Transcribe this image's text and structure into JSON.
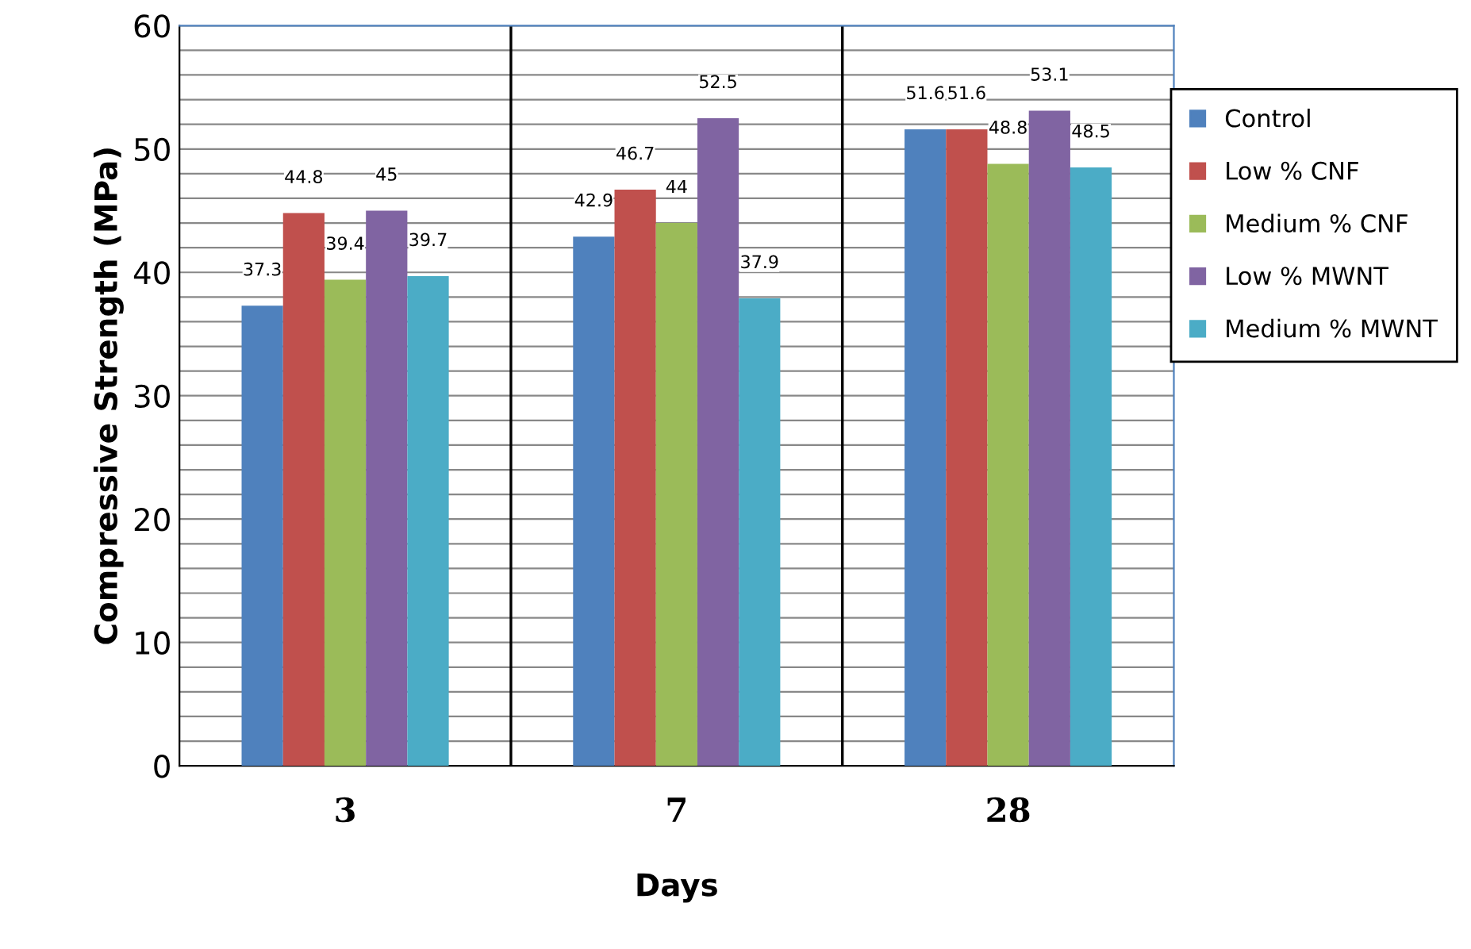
{
  "chart_data": {
    "type": "bar",
    "xlabel": "Days",
    "ylabel": "Compressive Strength (MPa)",
    "categories": [
      "3",
      "7",
      "28"
    ],
    "series": [
      {
        "name": "Control",
        "color": "#4f81bd",
        "values": [
          37.3,
          42.9,
          51.6
        ]
      },
      {
        "name": "Low % CNF",
        "color": "#c0504d",
        "values": [
          44.8,
          46.7,
          51.6
        ]
      },
      {
        "name": "Medium % CNF",
        "color": "#9bbb59",
        "values": [
          39.4,
          44,
          48.8
        ]
      },
      {
        "name": "Low % MWNT",
        "color": "#8064a2",
        "values": [
          45,
          52.5,
          53.1
        ]
      },
      {
        "name": "Medium % MWNT",
        "color": "#4bacc6",
        "values": [
          39.7,
          37.9,
          48.5
        ]
      }
    ],
    "ylim": [
      0,
      60
    ],
    "yticks": [
      0,
      {
        "value": 2,
        "label": null
      },
      {
        "value": 4,
        "label": null
      },
      {
        "value": 6,
        "label": null
      },
      {
        "value": 8,
        "label": null
      },
      10,
      {
        "value": 12,
        "label": null
      },
      {
        "value": 14,
        "label": null
      },
      {
        "value": 16,
        "label": null
      },
      {
        "value": 18,
        "label": null
      },
      20,
      {
        "value": 22,
        "label": null
      },
      {
        "value": 24,
        "label": null
      },
      {
        "value": 26,
        "label": null
      },
      {
        "value": 28,
        "label": null
      },
      30,
      {
        "value": 32,
        "label": null
      },
      {
        "value": 34,
        "label": null
      },
      {
        "value": 36,
        "label": null
      },
      {
        "value": 38,
        "label": null
      },
      40,
      {
        "value": 42,
        "label": null
      },
      {
        "value": 44,
        "label": null
      },
      {
        "value": 46,
        "label": null
      },
      {
        "value": 48,
        "label": null
      },
      50,
      {
        "value": 52,
        "label": null
      },
      {
        "value": 54,
        "label": null
      },
      {
        "value": 56,
        "label": null
      },
      {
        "value": 58,
        "label": null
      },
      60
    ],
    "grid": true,
    "legend": "right",
    "data_labels": true
  }
}
